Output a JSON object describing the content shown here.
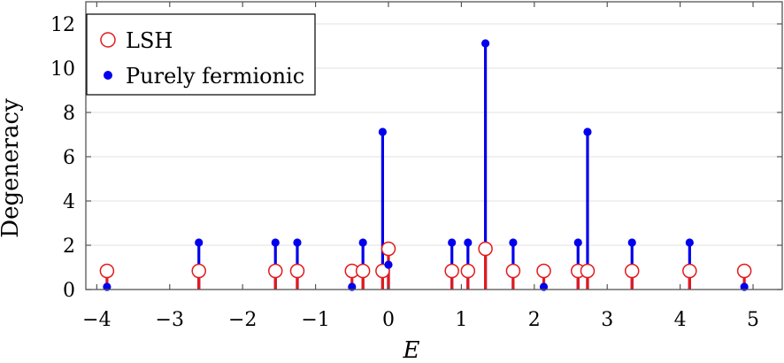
{
  "chart_data": {
    "type": "stem",
    "xlabel": "E",
    "ylabel": "Degeneracy",
    "xlim": [
      -4.15,
      5.4
    ],
    "ylim": [
      0,
      13
    ],
    "x_ticks": [
      -4,
      -3,
      -2,
      -1,
      0,
      1,
      2,
      3,
      4,
      5
    ],
    "x_tick_labels": [
      "−4",
      "−3",
      "−2",
      "−1",
      "0",
      "1",
      "2",
      "3",
      "4",
      "5"
    ],
    "y_ticks": [
      0,
      2,
      4,
      6,
      8,
      10,
      12
    ],
    "y_tick_labels": [
      "0",
      "2",
      "4",
      "6",
      "8",
      "10",
      "12"
    ],
    "grid": "horizontal",
    "legend_position": "top-left",
    "series": [
      {
        "name": "LSH",
        "marker": "open-circle",
        "color": "#e31a1c",
        "points": [
          {
            "x": -3.86,
            "y": 1
          },
          {
            "x": -2.6,
            "y": 1
          },
          {
            "x": -1.55,
            "y": 1
          },
          {
            "x": -1.25,
            "y": 1
          },
          {
            "x": -0.5,
            "y": 1
          },
          {
            "x": -0.35,
            "y": 1
          },
          {
            "x": -0.08,
            "y": 1
          },
          {
            "x": 0.0,
            "y": 2
          },
          {
            "x": 0.87,
            "y": 1
          },
          {
            "x": 1.09,
            "y": 1
          },
          {
            "x": 1.33,
            "y": 2
          },
          {
            "x": 1.71,
            "y": 1
          },
          {
            "x": 2.13,
            "y": 1
          },
          {
            "x": 2.6,
            "y": 1
          },
          {
            "x": 2.73,
            "y": 1
          },
          {
            "x": 3.34,
            "y": 1
          },
          {
            "x": 4.13,
            "y": 1
          },
          {
            "x": 4.88,
            "y": 1
          }
        ]
      },
      {
        "name": "Purely fermionic",
        "marker": "filled-dot",
        "color": "#0000ee",
        "points": [
          {
            "x": -3.86,
            "y": 1
          },
          {
            "x": -2.6,
            "y": 3
          },
          {
            "x": -1.55,
            "y": 3
          },
          {
            "x": -1.25,
            "y": 3
          },
          {
            "x": -0.5,
            "y": 1
          },
          {
            "x": -0.35,
            "y": 3
          },
          {
            "x": -0.08,
            "y": 8
          },
          {
            "x": 0.0,
            "y": 2
          },
          {
            "x": 0.87,
            "y": 3
          },
          {
            "x": 1.09,
            "y": 3
          },
          {
            "x": 1.33,
            "y": 12
          },
          {
            "x": 1.71,
            "y": 3
          },
          {
            "x": 2.13,
            "y": 1
          },
          {
            "x": 2.6,
            "y": 3
          },
          {
            "x": 2.73,
            "y": 8
          },
          {
            "x": 3.34,
            "y": 3
          },
          {
            "x": 4.13,
            "y": 3
          },
          {
            "x": 4.88,
            "y": 1
          }
        ]
      }
    ]
  }
}
